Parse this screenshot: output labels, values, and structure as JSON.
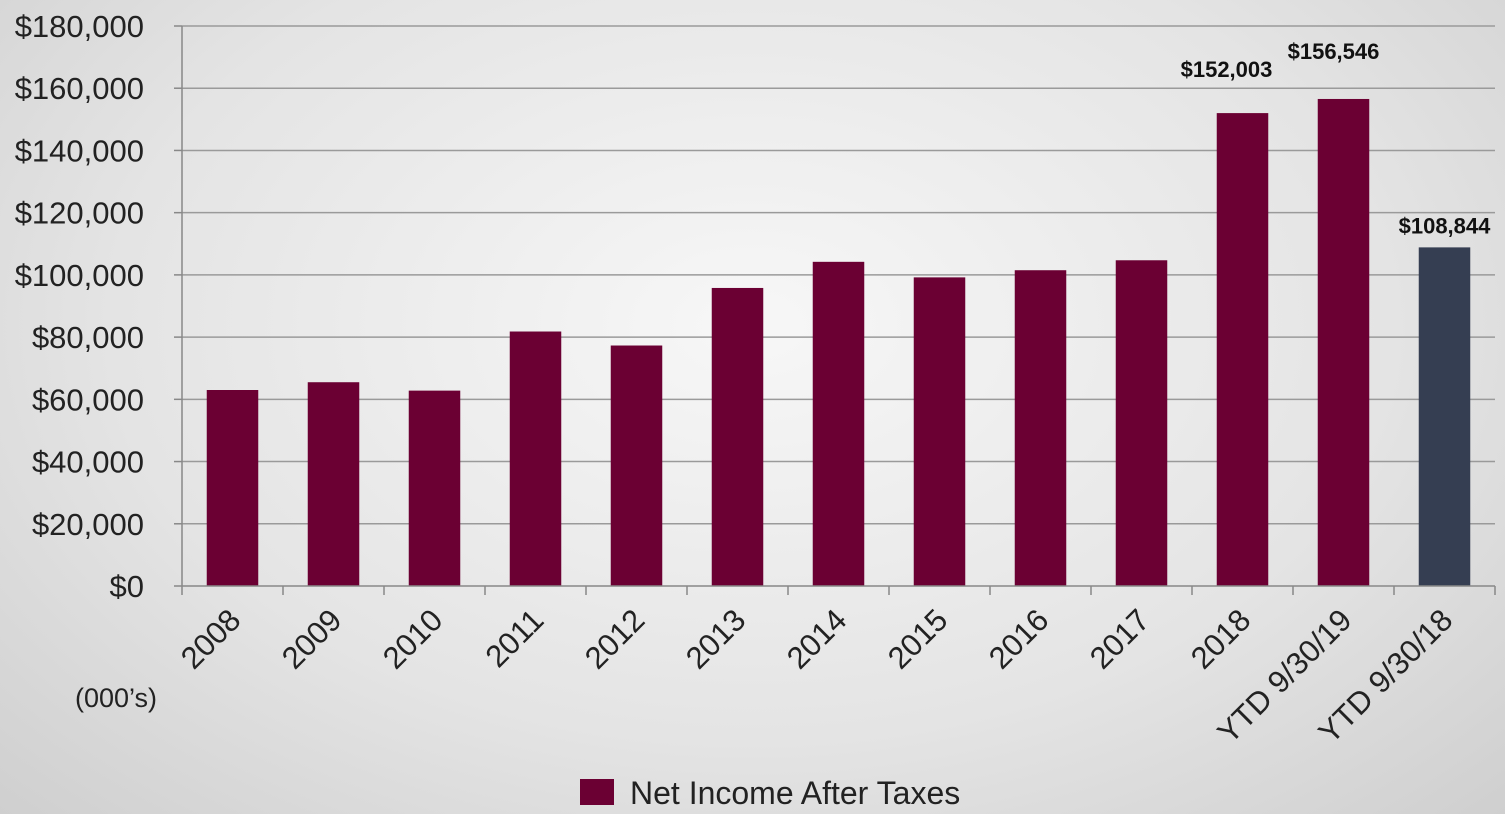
{
  "chart_data": {
    "type": "bar",
    "categories": [
      "2008",
      "2009",
      "2010",
      "2011",
      "2012",
      "2013",
      "2014",
      "2015",
      "2016",
      "2017",
      "2018",
      "YTD 9/30/19",
      "YTD 9/30/18"
    ],
    "series": [
      {
        "name": "Net Income After Taxes",
        "values": [
          63000,
          65500,
          62800,
          81800,
          77300,
          95800,
          104200,
          99200,
          101500,
          104700,
          152003,
          156546,
          108844
        ],
        "colors": [
          "#6b0033",
          "#6b0033",
          "#6b0033",
          "#6b0033",
          "#6b0033",
          "#6b0033",
          "#6b0033",
          "#6b0033",
          "#6b0033",
          "#6b0033",
          "#6b0033",
          "#6b0033",
          "#353e52"
        ],
        "data_labels": [
          "",
          "",
          "",
          "",
          "",
          "",
          "",
          "",
          "",
          "",
          "$152,003",
          "$156,546",
          "$108,844"
        ]
      }
    ],
    "ylim": [
      0,
      180000
    ],
    "yticks": [
      0,
      20000,
      40000,
      60000,
      80000,
      100000,
      120000,
      140000,
      160000,
      180000
    ],
    "ytick_labels": [
      "$0",
      "$20,000",
      "$40,000",
      "$60,000",
      "$80,000",
      "$100,000",
      "$120,000",
      "$140,000",
      "$160,000",
      "$180,000"
    ],
    "unit_label": "(000’s)",
    "grid": true,
    "legend_position": "bottom",
    "legend_color": "#6b0033"
  }
}
